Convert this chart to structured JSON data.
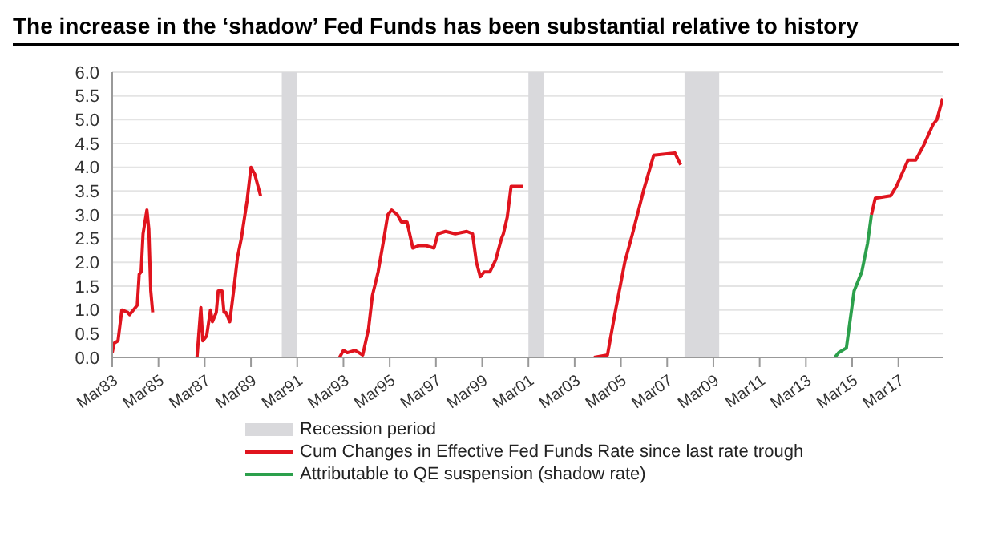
{
  "chart_data": {
    "type": "line",
    "title": "The increase in the ‘shadow’ Fed Funds has been substantial relative to history",
    "xlim": [
      "1983-03",
      "2019-02"
    ],
    "xticks": [
      {
        "value": "1983-03",
        "label": "Mar83"
      },
      {
        "value": "1985-03",
        "label": "Mar85"
      },
      {
        "value": "1987-03",
        "label": "Mar87"
      },
      {
        "value": "1989-03",
        "label": "Mar89"
      },
      {
        "value": "1991-03",
        "label": "Mar91"
      },
      {
        "value": "1993-03",
        "label": "Mar93"
      },
      {
        "value": "1995-03",
        "label": "Mar95"
      },
      {
        "value": "1997-03",
        "label": "Mar97"
      },
      {
        "value": "1999-03",
        "label": "Mar99"
      },
      {
        "value": "2001-03",
        "label": "Mar01"
      },
      {
        "value": "2003-03",
        "label": "Mar03"
      },
      {
        "value": "2005-03",
        "label": "Mar05"
      },
      {
        "value": "2007-03",
        "label": "Mar07"
      },
      {
        "value": "2009-03",
        "label": "Mar09"
      },
      {
        "value": "2011-03",
        "label": "Mar11"
      },
      {
        "value": "2013-03",
        "label": "Mar13"
      },
      {
        "value": "2015-03",
        "label": "Mar15"
      },
      {
        "value": "2017-03",
        "label": "Mar17"
      }
    ],
    "ylim": [
      0,
      6
    ],
    "yticks": [
      {
        "value": 0,
        "label": "0.0"
      },
      {
        "value": 0.5,
        "label": "0.5"
      },
      {
        "value": 1,
        "label": "1.0"
      },
      {
        "value": 1.5,
        "label": "1.5"
      },
      {
        "value": 2,
        "label": "2.0"
      },
      {
        "value": 2.5,
        "label": "2.5"
      },
      {
        "value": 3,
        "label": "3.0"
      },
      {
        "value": 3.5,
        "label": "3.5"
      },
      {
        "value": 4,
        "label": "4.0"
      },
      {
        "value": 4.5,
        "label": "4.5"
      },
      {
        "value": 5,
        "label": "5.0"
      },
      {
        "value": 5.5,
        "label": "5.5"
      },
      {
        "value": 6,
        "label": "6.0"
      }
    ],
    "grid": "y",
    "legend": "bottom",
    "marker": "none",
    "line_style": "solid",
    "bands": [
      {
        "axis": "x",
        "from": "1990-07",
        "to": "1991-03",
        "label": "Recession period",
        "color": "#d9d9dc"
      },
      {
        "axis": "x",
        "from": "2001-03",
        "to": "2001-11",
        "color": "#d9d9dc"
      },
      {
        "axis": "x",
        "from": "2007-12",
        "to": "2009-06",
        "color": "#d9d9dc"
      }
    ],
    "series": [
      {
        "name": "Cum Changes in Effective Fed Funds Rate since last rate trough",
        "color": "#e0141e",
        "x": [
          "1983-03",
          "1983-04",
          "1983-06",
          "1983-08",
          "1983-11",
          "1983-12",
          "1984-02",
          "1984-04",
          "1984-05",
          "1984-06",
          "1984-07",
          "1984-09",
          "1984-10",
          "1984-11",
          "1984-12",
          "1985-11",
          "1986-11",
          "1987-01",
          "1987-02",
          "1987-04",
          "1987-06",
          "1987-07",
          "1987-09",
          "1987-10",
          "1987-12",
          "1988-01",
          "1988-02",
          "1988-04",
          "1988-06",
          "1988-08",
          "1988-10",
          "1989-01",
          "1989-03",
          "1989-05",
          "1989-08",
          "1991-07",
          "1993-01",
          "1993-03",
          "1993-05",
          "1993-09",
          "1994-01",
          "1994-04",
          "1994-06",
          "1994-09",
          "1994-12",
          "1995-02",
          "1995-04",
          "1995-07",
          "1995-09",
          "1995-12",
          "1996-03",
          "1996-06",
          "1996-10",
          "1997-02",
          "1997-04",
          "1997-08",
          "1998-01",
          "1998-07",
          "1998-10",
          "1998-12",
          "1999-02",
          "1999-04",
          "1999-07",
          "1999-10",
          "2000-01",
          "2000-02",
          "2000-04",
          "2000-06",
          "2000-12",
          "2002-07",
          "2004-01",
          "2004-08",
          "2004-12",
          "2005-05",
          "2005-09",
          "2006-03",
          "2006-08",
          "2007-07",
          "2007-10",
          "2012-01",
          "2016-01",
          "2016-03",
          "2016-11",
          "2017-02",
          "2017-08",
          "2017-12",
          "2018-04",
          "2018-09",
          "2018-11",
          "2019-02"
        ],
        "values": [
          0.1,
          0.3,
          0.35,
          1.0,
          0.95,
          0.9,
          1.0,
          1.1,
          1.75,
          1.8,
          2.6,
          3.1,
          2.7,
          1.4,
          0.95,
          null,
          0.0,
          1.05,
          0.35,
          0.45,
          1.0,
          0.75,
          0.95,
          1.4,
          1.4,
          0.95,
          0.95,
          0.75,
          1.4,
          2.1,
          2.5,
          3.3,
          4.0,
          3.85,
          3.4,
          null,
          0.0,
          0.15,
          0.1,
          0.15,
          0.05,
          0.6,
          1.3,
          1.8,
          2.5,
          3.0,
          3.1,
          3.0,
          2.85,
          2.85,
          2.3,
          2.35,
          2.35,
          2.3,
          2.6,
          2.65,
          2.6,
          2.65,
          2.6,
          2.0,
          1.7,
          1.8,
          1.8,
          2.05,
          2.5,
          2.6,
          2.95,
          3.6,
          3.6,
          null,
          0.0,
          0.05,
          0.95,
          2.0,
          2.6,
          3.55,
          4.25,
          4.3,
          4.05,
          null,
          3.0,
          3.35,
          3.4,
          3.6,
          4.15,
          4.15,
          4.45,
          4.9,
          5.0,
          5.45
        ]
      },
      {
        "name": "Attributable to QE suspension (shadow rate)",
        "color": "#2ca04c",
        "x": [
          "2014-06",
          "2014-08",
          "2014-12",
          "2015-04",
          "2015-08",
          "2015-11",
          "2016-01"
        ],
        "values": [
          0.0,
          0.1,
          0.2,
          1.4,
          1.8,
          2.4,
          3.0
        ]
      }
    ]
  }
}
